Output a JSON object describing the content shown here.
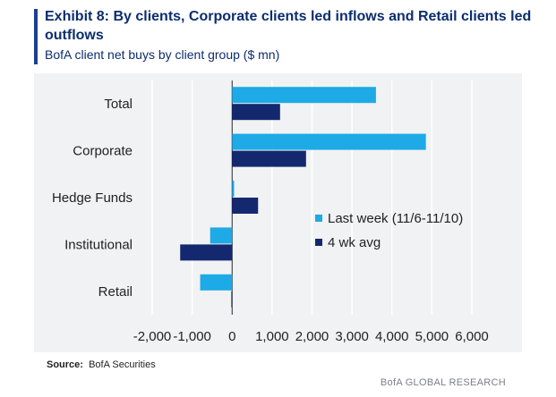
{
  "header": {
    "title": "Exhibit 8: By clients, Corporate clients led inflows and Retail clients led outflows",
    "subtitle": "BofA client net buys by client group ($ mn)"
  },
  "source": {
    "label": "Source:",
    "text": "BofA Securities"
  },
  "footer": {
    "brand": "BofA GLOBAL RESEARCH"
  },
  "colors": {
    "last_week": "#1eaae6",
    "four_wk_avg": "#13286e",
    "title": "#0c2d6e",
    "panel": "#f1f2f4"
  },
  "chart_data": {
    "type": "bar",
    "orientation": "horizontal",
    "categories": [
      "Total",
      "Corporate",
      "Hedge Funds",
      "Institutional",
      "Retail"
    ],
    "series": [
      {
        "name": "Last week (11/6-11/10)",
        "values": [
          3600,
          4850,
          50,
          -550,
          -800
        ]
      },
      {
        "name": "4 wk avg",
        "values": [
          1200,
          1850,
          650,
          -1300,
          -20
        ]
      }
    ],
    "xlim": [
      -2000,
      6000
    ],
    "xticks": [
      -2000,
      -1000,
      0,
      1000,
      2000,
      3000,
      4000,
      5000,
      6000
    ],
    "xtick_labels": [
      "-2,000",
      "-1,000",
      "0",
      "1,000",
      "2,000",
      "3,000",
      "4,000",
      "5,000",
      "6,000"
    ],
    "grid": "vertical",
    "legend": "right-middle"
  }
}
